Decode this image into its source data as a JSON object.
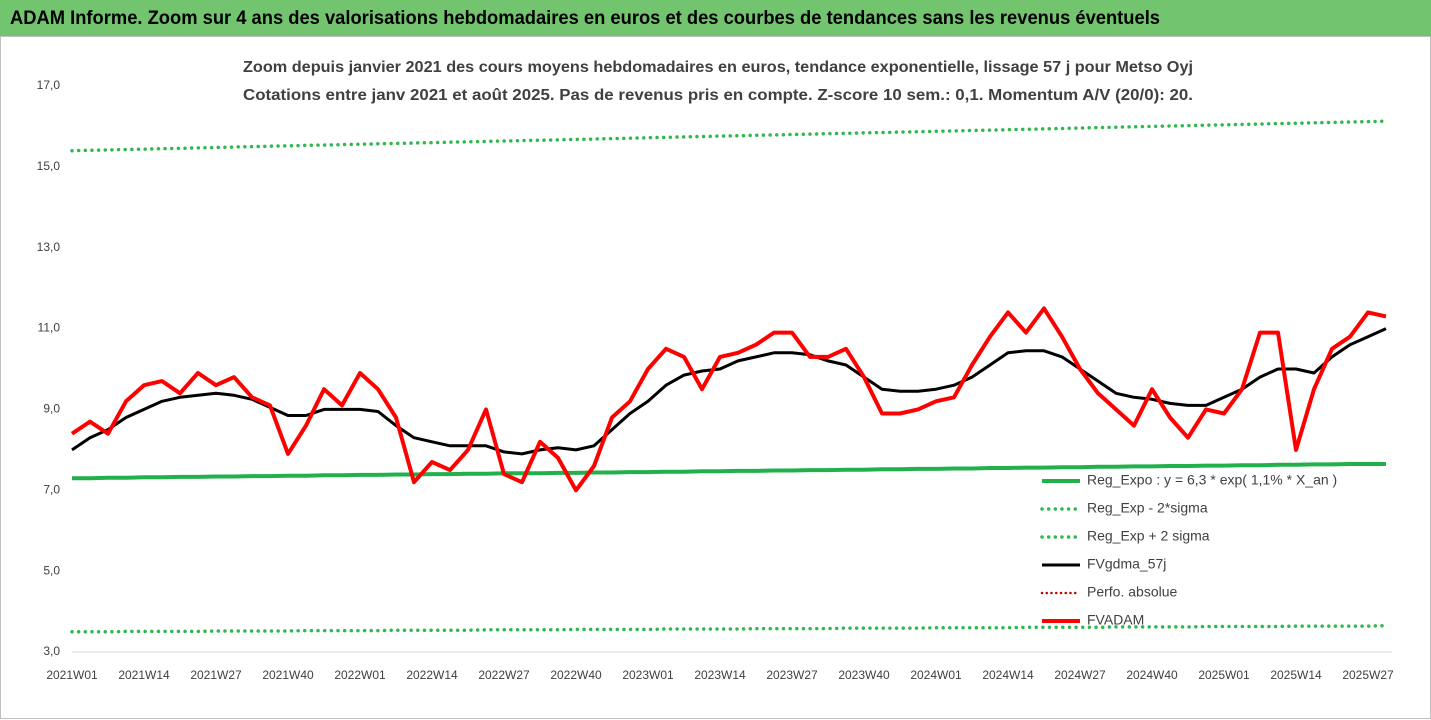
{
  "header": {
    "title": "ADAM Informe. Zoom sur 4 ans des valorisations hebdomadaires en euros et des courbes de tendances sans les revenus éventuels"
  },
  "chart_data": {
    "type": "line",
    "title": "Zoom depuis janvier 2021 des cours moyens hebdomadaires en euros, tendance exponentielle, lissage 57 j pour Metso Oyj",
    "subtitle": "Cotations entre janv 2021 et août 2025.  Pas de revenus pris en compte. Z-score 10 sem.: 0,1. Momentum A/V (20/0): 20.",
    "categories": [
      "2021W01",
      null,
      null,
      null,
      "2021W14",
      null,
      null,
      null,
      "2021W27",
      null,
      null,
      null,
      "2021W40",
      null,
      null,
      null,
      "2022W01",
      null,
      null,
      null,
      "2022W14",
      null,
      null,
      null,
      "2022W27",
      null,
      null,
      null,
      "2022W40",
      null,
      null,
      null,
      "2023W01",
      null,
      null,
      null,
      "2023W14",
      null,
      null,
      null,
      "2023W27",
      null,
      null,
      null,
      "2023W40",
      null,
      null,
      null,
      "2024W01",
      null,
      null,
      null,
      "2024W14",
      null,
      null,
      null,
      "2024W27",
      null,
      null,
      null,
      "2024W40",
      null,
      null,
      null,
      "2025W01",
      null,
      null,
      null,
      "2025W14",
      null,
      null,
      null,
      "2025W27",
      null
    ],
    "series": [
      {
        "name": "Reg_Expo : y = 6,3 * exp( 1,1% *  X_an )",
        "color": "#22b04b",
        "style": "solid",
        "width": 4,
        "values": [
          7.3,
          7.3,
          7.31,
          7.31,
          7.32,
          7.32,
          7.33,
          7.33,
          7.34,
          7.34,
          7.35,
          7.35,
          7.36,
          7.36,
          7.37,
          7.37,
          7.38,
          7.38,
          7.39,
          7.39,
          7.4,
          7.4,
          7.41,
          7.41,
          7.42,
          7.42,
          7.42,
          7.43,
          7.43,
          7.44,
          7.44,
          7.45,
          7.45,
          7.46,
          7.46,
          7.47,
          7.47,
          7.48,
          7.48,
          7.49,
          7.49,
          7.5,
          7.5,
          7.51,
          7.51,
          7.52,
          7.52,
          7.53,
          7.53,
          7.54,
          7.54,
          7.55,
          7.55,
          7.56,
          7.56,
          7.57,
          7.57,
          7.58,
          7.58,
          7.59,
          7.59,
          7.6,
          7.6,
          7.61,
          7.61,
          7.62,
          7.62,
          7.63,
          7.63,
          7.64,
          7.64,
          7.65,
          7.65,
          7.65
        ]
      },
      {
        "name": "Reg_Exp - 2*sigma",
        "color": "#2eb84f",
        "style": "dotted",
        "width": 3.5,
        "values": [
          3.5,
          3.5,
          3.5,
          3.51,
          3.51,
          3.51,
          3.51,
          3.51,
          3.52,
          3.52,
          3.52,
          3.52,
          3.52,
          3.53,
          3.53,
          3.53,
          3.53,
          3.53,
          3.54,
          3.54,
          3.54,
          3.54,
          3.54,
          3.55,
          3.55,
          3.55,
          3.55,
          3.55,
          3.56,
          3.56,
          3.56,
          3.56,
          3.56,
          3.57,
          3.57,
          3.57,
          3.57,
          3.57,
          3.58,
          3.58,
          3.58,
          3.58,
          3.58,
          3.59,
          3.59,
          3.59,
          3.59,
          3.59,
          3.6,
          3.6,
          3.6,
          3.6,
          3.6,
          3.61,
          3.61,
          3.61,
          3.61,
          3.61,
          3.62,
          3.62,
          3.62,
          3.62,
          3.62,
          3.63,
          3.63,
          3.63,
          3.63,
          3.63,
          3.64,
          3.64,
          3.64,
          3.64,
          3.64,
          3.65
        ]
      },
      {
        "name": "Reg_Exp + 2 sigma",
        "color": "#2eb84f",
        "style": "dotted",
        "width": 3.5,
        "values": [
          15.4,
          15.41,
          15.42,
          15.43,
          15.44,
          15.45,
          15.46,
          15.47,
          15.48,
          15.49,
          15.5,
          15.51,
          15.52,
          15.53,
          15.54,
          15.55,
          15.56,
          15.57,
          15.58,
          15.59,
          15.6,
          15.61,
          15.62,
          15.63,
          15.64,
          15.65,
          15.66,
          15.67,
          15.68,
          15.69,
          15.7,
          15.71,
          15.72,
          15.73,
          15.74,
          15.75,
          15.76,
          15.77,
          15.78,
          15.79,
          15.8,
          15.81,
          15.82,
          15.83,
          15.84,
          15.85,
          15.86,
          15.87,
          15.88,
          15.89,
          15.9,
          15.91,
          15.92,
          15.93,
          15.94,
          15.95,
          15.96,
          15.97,
          15.98,
          15.99,
          16.0,
          16.01,
          16.02,
          16.03,
          16.04,
          16.05,
          16.06,
          16.07,
          16.08,
          16.09,
          16.1,
          16.11,
          16.12,
          16.13
        ]
      },
      {
        "name": "FVgdma_57j",
        "color": "#000000",
        "style": "solid",
        "width": 3,
        "values": [
          8.0,
          8.3,
          8.5,
          8.8,
          9.0,
          9.2,
          9.3,
          9.35,
          9.4,
          9.35,
          9.25,
          9.05,
          8.85,
          8.85,
          9.0,
          9.0,
          9.0,
          8.95,
          8.6,
          8.3,
          8.2,
          8.1,
          8.1,
          8.1,
          7.95,
          7.9,
          8.0,
          8.05,
          8.0,
          8.1,
          8.5,
          8.9,
          9.2,
          9.6,
          9.85,
          9.95,
          10.0,
          10.2,
          10.3,
          10.4,
          10.4,
          10.35,
          10.2,
          10.1,
          9.8,
          9.5,
          9.45,
          9.45,
          9.5,
          9.6,
          9.8,
          10.1,
          10.4,
          10.45,
          10.45,
          10.3,
          10.0,
          9.7,
          9.4,
          9.3,
          9.25,
          9.15,
          9.1,
          9.1,
          9.3,
          9.5,
          9.8,
          10.0,
          10.0,
          9.9,
          10.3,
          10.6,
          10.8,
          11.0
        ]
      },
      {
        "name": "Perfo. absolue",
        "color": "#c00000",
        "style": "dotted",
        "width": 2.5,
        "values": [
          null,
          null,
          null,
          null,
          null,
          null,
          null,
          null,
          null,
          null,
          null,
          null,
          null,
          null,
          null,
          null,
          null,
          null,
          null,
          null,
          null,
          null,
          null,
          null,
          null,
          null,
          null,
          null,
          null,
          null,
          null,
          null,
          null,
          null,
          null,
          null,
          null,
          null,
          null,
          null,
          null,
          null,
          null,
          null,
          null,
          null,
          null,
          null,
          null,
          null,
          null,
          null,
          null,
          null,
          null,
          null,
          null,
          null,
          null,
          null,
          null,
          null,
          null,
          null,
          null,
          null,
          null,
          null,
          null,
          null,
          null,
          null,
          null,
          null
        ]
      },
      {
        "name": "FVADAM",
        "color": "#ff0000",
        "style": "solid",
        "width": 4,
        "values": [
          8.4,
          8.7,
          8.4,
          9.2,
          9.6,
          9.7,
          9.4,
          9.9,
          9.6,
          9.8,
          9.3,
          9.1,
          7.9,
          8.6,
          9.5,
          9.1,
          9.9,
          9.5,
          8.8,
          7.2,
          7.7,
          7.5,
          8.0,
          9.0,
          7.4,
          7.2,
          8.2,
          7.8,
          7.0,
          7.6,
          8.8,
          9.2,
          10.0,
          10.5,
          10.3,
          9.5,
          10.3,
          10.4,
          10.6,
          10.9,
          10.9,
          10.3,
          10.3,
          10.5,
          9.8,
          8.9,
          8.9,
          9.0,
          9.2,
          9.3,
          10.1,
          10.8,
          11.4,
          10.9,
          11.5,
          10.8,
          10.0,
          9.4,
          9.0,
          8.6,
          9.5,
          8.8,
          8.3,
          9.0,
          8.9,
          9.5,
          10.9,
          10.9,
          8.0,
          9.5,
          10.5,
          10.8,
          11.4,
          11.3
        ]
      }
    ],
    "ylim": [
      3,
      17
    ],
    "yticks": [
      {
        "value": 3,
        "label": "3,0"
      },
      {
        "value": 5,
        "label": "5,0"
      },
      {
        "value": 7,
        "label": "7,0"
      },
      {
        "value": 9,
        "label": "9,0"
      },
      {
        "value": 11,
        "label": "11,0"
      },
      {
        "value": 13,
        "label": "13,0"
      },
      {
        "value": 15,
        "label": "15,0"
      },
      {
        "value": 17,
        "label": "17,0"
      }
    ],
    "grid": false,
    "legend": "lower-right"
  }
}
